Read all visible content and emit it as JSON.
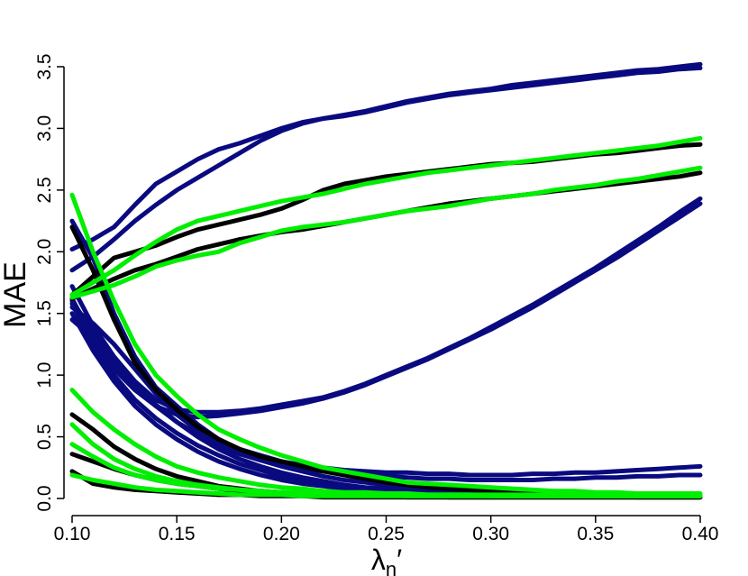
{
  "chart_data": {
    "type": "line",
    "title": "",
    "xlabel": "λn′",
    "ylabel": "MAE",
    "xlim": [
      0.1,
      0.4
    ],
    "ylim": [
      0.0,
      3.5
    ],
    "xticks": [
      "0.10",
      "0.15",
      "0.20",
      "0.25",
      "0.30",
      "0.35",
      "0.40"
    ],
    "yticks": [
      "0.0",
      "0.5",
      "1.0",
      "1.5",
      "2.0",
      "2.5",
      "3.0",
      "3.5"
    ],
    "x": [
      0.1,
      0.11,
      0.12,
      0.13,
      0.14,
      0.15,
      0.16,
      0.17,
      0.18,
      0.19,
      0.2,
      0.21,
      0.22,
      0.23,
      0.24,
      0.25,
      0.26,
      0.27,
      0.28,
      0.29,
      0.3,
      0.31,
      0.32,
      0.33,
      0.34,
      0.35,
      0.36,
      0.37,
      0.38,
      0.39,
      0.4
    ],
    "grid": false,
    "legend": "none",
    "colors": {
      "navy": "#0a0a80",
      "black": "#000000",
      "green": "#00ee00"
    },
    "series": [
      {
        "color": "navy",
        "values": [
          2.02,
          2.1,
          2.2,
          2.38,
          2.55,
          2.65,
          2.75,
          2.83,
          2.88,
          2.94,
          3.0,
          3.05,
          3.08,
          3.11,
          3.14,
          3.18,
          3.22,
          3.25,
          3.28,
          3.3,
          3.32,
          3.35,
          3.37,
          3.39,
          3.41,
          3.43,
          3.45,
          3.47,
          3.48,
          3.5,
          3.52
        ]
      },
      {
        "color": "navy",
        "values": [
          1.85,
          1.96,
          2.1,
          2.25,
          2.38,
          2.5,
          2.6,
          2.7,
          2.8,
          2.9,
          2.98,
          3.04,
          3.08,
          3.1,
          3.13,
          3.17,
          3.21,
          3.24,
          3.27,
          3.29,
          3.31,
          3.33,
          3.35,
          3.37,
          3.39,
          3.41,
          3.43,
          3.45,
          3.46,
          3.48,
          3.49
        ]
      },
      {
        "color": "navy",
        "values": [
          1.72,
          1.4,
          1.15,
          0.95,
          0.8,
          0.72,
          0.7,
          0.7,
          0.71,
          0.73,
          0.76,
          0.79,
          0.82,
          0.87,
          0.93,
          1.0,
          1.07,
          1.14,
          1.22,
          1.3,
          1.39,
          1.48,
          1.57,
          1.67,
          1.77,
          1.87,
          1.98,
          2.09,
          2.2,
          2.32,
          2.43
        ]
      },
      {
        "color": "navy",
        "values": [
          1.62,
          1.3,
          1.05,
          0.88,
          0.75,
          0.68,
          0.66,
          0.67,
          0.69,
          0.71,
          0.74,
          0.77,
          0.81,
          0.86,
          0.92,
          0.99,
          1.06,
          1.13,
          1.21,
          1.29,
          1.37,
          1.46,
          1.55,
          1.65,
          1.75,
          1.85,
          1.95,
          2.06,
          2.17,
          2.28,
          2.39
        ]
      },
      {
        "color": "navy",
        "values": [
          2.25,
          1.95,
          1.5,
          1.15,
          0.9,
          0.75,
          0.6,
          0.48,
          0.4,
          0.35,
          0.3,
          0.27,
          0.25,
          0.23,
          0.22,
          0.21,
          0.21,
          0.2,
          0.2,
          0.19,
          0.19,
          0.19,
          0.2,
          0.2,
          0.21,
          0.21,
          0.22,
          0.23,
          0.24,
          0.25,
          0.26
        ]
      },
      {
        "color": "navy",
        "values": [
          1.6,
          1.35,
          1.1,
          0.9,
          0.75,
          0.62,
          0.52,
          0.43,
          0.36,
          0.31,
          0.27,
          0.24,
          0.22,
          0.2,
          0.19,
          0.18,
          0.17,
          0.16,
          0.16,
          0.15,
          0.15,
          0.15,
          0.15,
          0.16,
          0.16,
          0.17,
          0.17,
          0.18,
          0.18,
          0.19,
          0.19
        ]
      },
      {
        "color": "navy",
        "values": [
          1.58,
          1.25,
          1.0,
          0.8,
          0.65,
          0.53,
          0.43,
          0.35,
          0.28,
          0.23,
          0.18,
          0.15,
          0.12,
          0.1,
          0.08,
          0.07,
          0.06,
          0.05,
          0.05,
          0.04,
          0.04,
          0.03,
          0.03,
          0.03,
          0.03,
          0.02,
          0.02,
          0.02,
          0.02,
          0.02,
          0.02
        ]
      },
      {
        "color": "navy",
        "values": [
          1.5,
          1.2,
          0.95,
          0.75,
          0.6,
          0.48,
          0.38,
          0.3,
          0.24,
          0.19,
          0.15,
          0.12,
          0.1,
          0.08,
          0.07,
          0.06,
          0.05,
          0.04,
          0.04,
          0.03,
          0.03,
          0.03,
          0.02,
          0.02,
          0.02,
          0.02,
          0.02,
          0.01,
          0.01,
          0.01,
          0.01
        ]
      },
      {
        "color": "navy",
        "values": [
          1.45,
          1.3,
          1.1,
          0.92,
          0.76,
          0.62,
          0.5,
          0.4,
          0.32,
          0.26,
          0.21,
          0.17,
          0.14,
          0.11,
          0.09,
          0.08,
          0.07,
          0.06,
          0.05,
          0.04,
          0.04,
          0.03,
          0.03,
          0.03,
          0.02,
          0.02,
          0.02,
          0.02,
          0.02,
          0.02,
          0.02
        ]
      },
      {
        "color": "navy",
        "values": [
          1.55,
          1.42,
          1.25,
          1.05,
          0.85,
          0.68,
          0.55,
          0.45,
          0.37,
          0.31,
          0.26,
          0.22,
          0.18,
          0.15,
          0.13,
          0.11,
          0.09,
          0.08,
          0.07,
          0.06,
          0.05,
          0.05,
          0.04,
          0.04,
          0.03,
          0.03,
          0.03,
          0.03,
          0.02,
          0.02,
          0.02
        ]
      },
      {
        "color": "black",
        "values": [
          1.62,
          1.7,
          1.78,
          1.85,
          1.9,
          1.96,
          2.02,
          2.06,
          2.1,
          2.13,
          2.16,
          2.18,
          2.21,
          2.24,
          2.27,
          2.3,
          2.33,
          2.36,
          2.39,
          2.41,
          2.43,
          2.45,
          2.47,
          2.49,
          2.51,
          2.53,
          2.55,
          2.57,
          2.59,
          2.61,
          2.64
        ]
      },
      {
        "color": "black",
        "values": [
          1.65,
          1.8,
          1.95,
          2.0,
          2.05,
          2.12,
          2.18,
          2.22,
          2.26,
          2.3,
          2.35,
          2.42,
          2.5,
          2.55,
          2.58,
          2.61,
          2.63,
          2.65,
          2.67,
          2.69,
          2.71,
          2.72,
          2.73,
          2.75,
          2.77,
          2.79,
          2.8,
          2.82,
          2.84,
          2.86,
          2.87
        ]
      },
      {
        "color": "black",
        "values": [
          2.2,
          1.85,
          1.45,
          1.1,
          0.88,
          0.72,
          0.58,
          0.48,
          0.4,
          0.34,
          0.3,
          0.26,
          0.22,
          0.19,
          0.16,
          0.13,
          0.11,
          0.09,
          0.08,
          0.07,
          0.06,
          0.05,
          0.05,
          0.04,
          0.04,
          0.03,
          0.03,
          0.03,
          0.03,
          0.02,
          0.02
        ]
      },
      {
        "color": "black",
        "values": [
          0.68,
          0.56,
          0.42,
          0.32,
          0.24,
          0.18,
          0.14,
          0.1,
          0.08,
          0.06,
          0.05,
          0.04,
          0.03,
          0.03,
          0.02,
          0.02,
          0.02,
          0.02,
          0.01,
          0.01,
          0.01,
          0.01,
          0.01,
          0.01,
          0.01,
          0.01,
          0.01,
          0.01,
          0.01,
          0.01,
          0.01
        ]
      },
      {
        "color": "black",
        "values": [
          0.36,
          0.3,
          0.24,
          0.19,
          0.15,
          0.12,
          0.1,
          0.08,
          0.06,
          0.05,
          0.04,
          0.03,
          0.03,
          0.02,
          0.02,
          0.02,
          0.01,
          0.01,
          0.01,
          0.01,
          0.01,
          0.01,
          0.01,
          0.01,
          0.01,
          0.01,
          0.01,
          0.01,
          0.01,
          0.01,
          0.01
        ]
      },
      {
        "color": "black",
        "values": [
          0.22,
          0.12,
          0.09,
          0.07,
          0.06,
          0.05,
          0.04,
          0.03,
          0.03,
          0.02,
          0.02,
          0.02,
          0.01,
          0.01,
          0.01,
          0.01,
          0.01,
          0.01,
          0.01,
          0.01,
          0.01,
          0.01,
          0.01,
          0.01,
          0.01,
          0.01,
          0.01,
          0.01,
          0.01,
          0.01,
          0.01
        ]
      },
      {
        "color": "green",
        "values": [
          1.65,
          1.75,
          1.85,
          1.97,
          2.08,
          2.18,
          2.25,
          2.29,
          2.33,
          2.37,
          2.41,
          2.44,
          2.47,
          2.51,
          2.55,
          2.58,
          2.61,
          2.64,
          2.66,
          2.68,
          2.7,
          2.72,
          2.74,
          2.76,
          2.78,
          2.8,
          2.82,
          2.84,
          2.86,
          2.89,
          2.92
        ]
      },
      {
        "color": "green",
        "values": [
          1.63,
          1.68,
          1.73,
          1.8,
          1.88,
          1.93,
          1.97,
          2.0,
          2.07,
          2.12,
          2.17,
          2.2,
          2.22,
          2.24,
          2.27,
          2.3,
          2.33,
          2.35,
          2.37,
          2.4,
          2.43,
          2.45,
          2.47,
          2.5,
          2.52,
          2.54,
          2.57,
          2.59,
          2.62,
          2.65,
          2.68
        ]
      },
      {
        "color": "green",
        "values": [
          2.46,
          2.0,
          1.6,
          1.25,
          1.0,
          0.83,
          0.68,
          0.56,
          0.48,
          0.41,
          0.35,
          0.3,
          0.25,
          0.22,
          0.19,
          0.16,
          0.13,
          0.12,
          0.11,
          0.1,
          0.09,
          0.08,
          0.07,
          0.06,
          0.06,
          0.05,
          0.05,
          0.04,
          0.04,
          0.04,
          0.04
        ]
      },
      {
        "color": "green",
        "values": [
          0.88,
          0.7,
          0.56,
          0.44,
          0.34,
          0.26,
          0.21,
          0.17,
          0.14,
          0.11,
          0.09,
          0.08,
          0.06,
          0.05,
          0.05,
          0.04,
          0.04,
          0.03,
          0.03,
          0.03,
          0.02,
          0.02,
          0.02,
          0.02,
          0.02,
          0.02,
          0.02,
          0.02,
          0.02,
          0.02,
          0.02
        ]
      },
      {
        "color": "green",
        "values": [
          0.6,
          0.44,
          0.32,
          0.24,
          0.18,
          0.14,
          0.11,
          0.09,
          0.07,
          0.06,
          0.05,
          0.04,
          0.04,
          0.03,
          0.03,
          0.03,
          0.02,
          0.02,
          0.02,
          0.02,
          0.02,
          0.02,
          0.02,
          0.02,
          0.02,
          0.02,
          0.02,
          0.02,
          0.02,
          0.02,
          0.02
        ]
      },
      {
        "color": "green",
        "values": [
          0.44,
          0.34,
          0.25,
          0.19,
          0.15,
          0.12,
          0.1,
          0.08,
          0.07,
          0.06,
          0.05,
          0.05,
          0.04,
          0.04,
          0.04,
          0.03,
          0.03,
          0.03,
          0.03,
          0.03,
          0.03,
          0.03,
          0.03,
          0.03,
          0.03,
          0.03,
          0.03,
          0.03,
          0.03,
          0.03,
          0.03
        ]
      },
      {
        "color": "green",
        "values": [
          0.19,
          0.15,
          0.12,
          0.09,
          0.07,
          0.06,
          0.05,
          0.04,
          0.03,
          0.03,
          0.03,
          0.02,
          0.02,
          0.02,
          0.02,
          0.02,
          0.02,
          0.02,
          0.02,
          0.02,
          0.02,
          0.02,
          0.02,
          0.02,
          0.02,
          0.02,
          0.02,
          0.02,
          0.02,
          0.02,
          0.02
        ]
      }
    ]
  }
}
